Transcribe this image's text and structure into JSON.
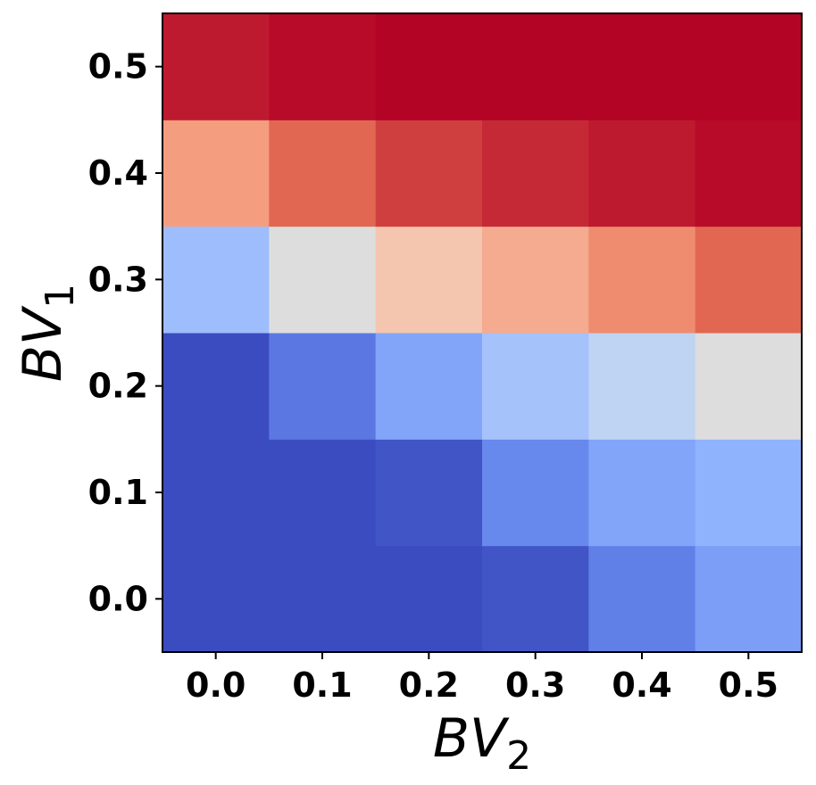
{
  "chart_data": {
    "type": "heatmap",
    "title": "",
    "xlabel": "BV",
    "xlabel_subscript": "2",
    "ylabel": "BV",
    "ylabel_subscript": "1",
    "x": [
      "0.0",
      "0.1",
      "0.2",
      "0.3",
      "0.4",
      "0.5"
    ],
    "y": [
      "0.0",
      "0.1",
      "0.2",
      "0.3",
      "0.4",
      "0.5"
    ],
    "colormap": "coolwarm",
    "vmin": 0,
    "vmax": 1,
    "values": [
      [
        0.0,
        0.0,
        0.0,
        0.02,
        0.12,
        0.2
      ],
      [
        0.0,
        0.0,
        0.02,
        0.14,
        0.22,
        0.26
      ],
      [
        0.0,
        0.1,
        0.22,
        0.32,
        0.4,
        0.5
      ],
      [
        0.3,
        0.5,
        0.62,
        0.7,
        0.78,
        0.86
      ],
      [
        0.74,
        0.86,
        0.92,
        0.95,
        0.97,
        0.99
      ],
      [
        0.97,
        0.99,
        1.0,
        1.0,
        1.0,
        1.0
      ]
    ],
    "grid": false,
    "colorbar": false
  }
}
